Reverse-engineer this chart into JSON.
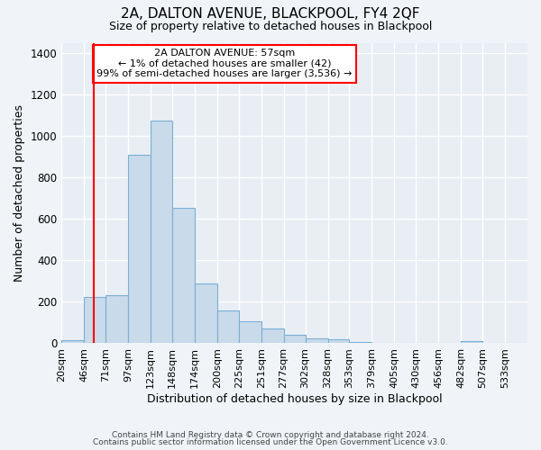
{
  "title": "2A, DALTON AVENUE, BLACKPOOL, FY4 2QF",
  "subtitle": "Size of property relative to detached houses in Blackpool",
  "xlabel": "Distribution of detached houses by size in Blackpool",
  "ylabel": "Number of detached properties",
  "bar_labels": [
    "20sqm",
    "46sqm",
    "71sqm",
    "97sqm",
    "123sqm",
    "148sqm",
    "174sqm",
    "200sqm",
    "225sqm",
    "251sqm",
    "277sqm",
    "302sqm",
    "328sqm",
    "353sqm",
    "379sqm",
    "405sqm",
    "430sqm",
    "456sqm",
    "482sqm",
    "507sqm",
    "533sqm"
  ],
  "bar_heights": [
    15,
    225,
    230,
    910,
    1075,
    655,
    290,
    160,
    105,
    70,
    40,
    25,
    18,
    8,
    0,
    0,
    0,
    0,
    10,
    0,
    0
  ],
  "bar_color": "#c9daea",
  "bar_edge_color": "#7bafd4",
  "ylim": [
    0,
    1450
  ],
  "yticks": [
    0,
    200,
    400,
    600,
    800,
    1000,
    1200,
    1400
  ],
  "property_line_x": 57,
  "annotation_title": "2A DALTON AVENUE: 57sqm",
  "annotation_line1": "← 1% of detached houses are smaller (42)",
  "annotation_line2": "99% of semi-detached houses are larger (3,536) →",
  "footer_line1": "Contains HM Land Registry data © Crown copyright and database right 2024.",
  "footer_line2": "Contains public sector information licensed under the Open Government Licence v3.0.",
  "background_color": "#f0f4f8",
  "plot_background": "#e8eef4",
  "grid_color": "#ffffff"
}
